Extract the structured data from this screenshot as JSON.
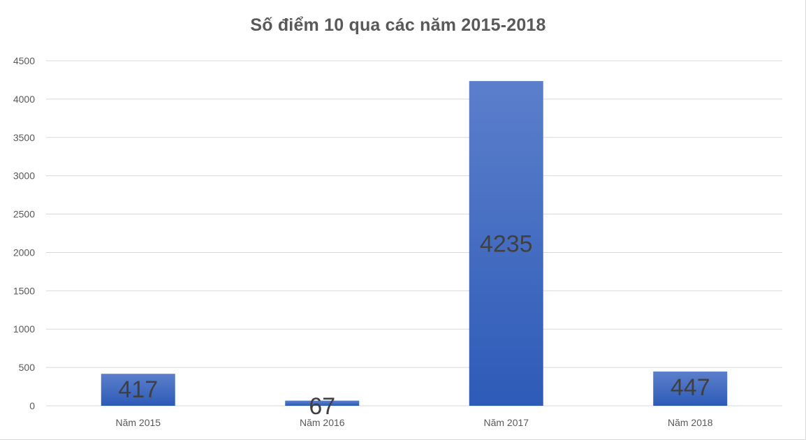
{
  "chart_data": {
    "type": "bar",
    "title": "Số điểm 10 qua các năm 2015-2018",
    "xlabel": "",
    "ylabel": "",
    "categories": [
      "Năm 2015",
      "Năm 2016",
      "Năm 2017",
      "Năm 2018"
    ],
    "values": [
      417,
      67,
      4235,
      447
    ],
    "data_labels": [
      "417",
      "67",
      "4235",
      "447"
    ],
    "ylim": [
      0,
      4500
    ],
    "yticks": [
      0,
      500,
      1000,
      1500,
      2000,
      2500,
      3000,
      3500,
      4000,
      4500
    ],
    "grid": true,
    "legend": "none",
    "colors": {
      "bar_top": "#5b7fcb",
      "bar_bottom": "#2e5bb8",
      "grid": "#d9d9d9",
      "axis_text": "#595959",
      "title_text": "#595959",
      "data_label_text": "#404040"
    }
  }
}
